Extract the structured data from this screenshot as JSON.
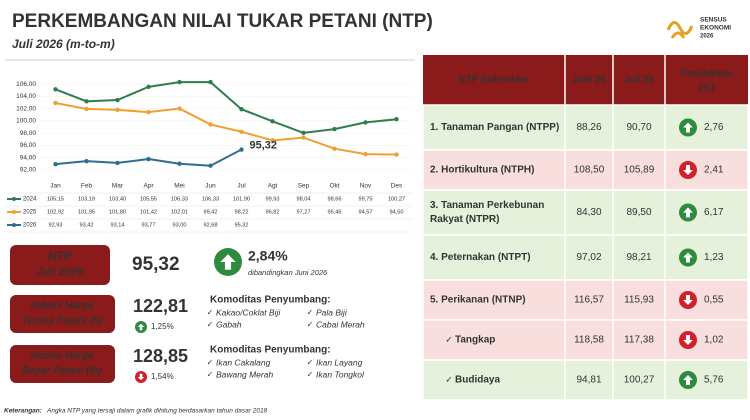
{
  "header": {
    "title": "PERKEMBANGAN NILAI TUKAR PETANI (NTP)",
    "subtitle": "Juli 2026 (m-to-m)"
  },
  "logo": {
    "lines": [
      "SENSUS",
      "EKONOMI",
      "2026"
    ]
  },
  "chart_data": {
    "type": "line",
    "categories": [
      "Jan",
      "Feb",
      "Mar",
      "Apr",
      "Mei",
      "Jun",
      "Jul",
      "Agt",
      "Sep",
      "Okt",
      "Nov",
      "Des"
    ],
    "series": [
      {
        "name": "2024",
        "color": "#2e7d4f",
        "values": [
          105.15,
          103.19,
          103.4,
          105.55,
          106.33,
          106.33,
          101.9,
          99.93,
          98.04,
          98.66,
          99.75,
          100.27
        ],
        "value_labels": [
          "105,15",
          "103,19",
          "103,40",
          "105,55",
          "106,33",
          "106,33",
          "101,90",
          "99,93",
          "98,04",
          "98,66",
          "99,75",
          "100,27"
        ]
      },
      {
        "name": "2025",
        "color": "#f0a030",
        "values": [
          102.92,
          101.95,
          101.8,
          101.42,
          102.01,
          99.42,
          98.22,
          96.82,
          97.27,
          95.46,
          94.57,
          94.5
        ],
        "value_labels": [
          "102,92",
          "101,95",
          "101,80",
          "101,42",
          "102,01",
          "99,42",
          "98,22",
          "96,82",
          "97,27",
          "95,46",
          "94,57",
          "94,50"
        ]
      },
      {
        "name": "2026",
        "color": "#2f6e8e",
        "values": [
          92.93,
          93.42,
          93.14,
          93.77,
          93.0,
          92.68,
          95.32,
          null,
          null,
          null,
          null,
          null
        ],
        "value_labels": [
          "92,93",
          "93,42",
          "93,14",
          "93,77",
          "93,00",
          "92,68",
          "95,32",
          null,
          null,
          null,
          null,
          null
        ]
      }
    ],
    "annotation": "95,32",
    "ylim": [
      91,
      107
    ],
    "yticks": [
      {
        "value": 92,
        "label": "92,00"
      },
      {
        "value": 94,
        "label": "94,00"
      },
      {
        "value": 96,
        "label": "96,00"
      },
      {
        "value": 98,
        "label": "98,00"
      },
      {
        "value": 100,
        "label": "100,00"
      },
      {
        "value": 102,
        "label": "102,00"
      },
      {
        "value": 104,
        "label": "104,00"
      },
      {
        "value": 106,
        "label": "106,00"
      }
    ]
  },
  "summary": {
    "ntp": {
      "label": [
        "NTP",
        "Juli 2026"
      ],
      "value": "95,32",
      "change": "2,84%",
      "note": "dibandingkan Juni 2026",
      "direction": "up"
    },
    "it": {
      "label": [
        "Indeks Harga",
        "Terima Petani (It)"
      ],
      "value": "122,81",
      "change": "1,25%",
      "direction": "up",
      "heading": "Komoditas Penyumbang:",
      "items": [
        "Kakao/Coklat Biji",
        "Pala Biji",
        "Gabah",
        "Cabai Merah"
      ]
    },
    "ib": {
      "label": [
        "Indeks Harga",
        "Bayar Petani (Ib)"
      ],
      "value": "128,85",
      "change": "1,54%",
      "direction": "down",
      "heading": "Komoditas Penyumbang:",
      "items": [
        "Ikan Cakalang",
        "Ikan Layang",
        "Bawang Merah",
        "Ikan Tongkol"
      ]
    }
  },
  "table": {
    "columns": [
      "NTP Subsektor",
      "Juni'26",
      "Juli'26"
    ],
    "change_header": [
      "Perubahan",
      "(%)"
    ],
    "rows": [
      {
        "label": [
          "1. Tanaman Pangan (NTPP)"
        ],
        "jun": "88,26",
        "jul": "90,70",
        "change": "2,76"
      },
      {
        "label": [
          "2. Hortikultura (NTPH)"
        ],
        "jun": "108,50",
        "jul": "105,89",
        "change": "2,41"
      },
      {
        "label": [
          "3. Tanaman Perkebunan",
          "Rakyat (NTPR)"
        ],
        "jun": "84,30",
        "jul": "89,50",
        "change": "6,17"
      },
      {
        "label": [
          "4. Peternakan (NTPT)"
        ],
        "jun": "97,02",
        "jul": "98,21",
        "change": "1,23"
      },
      {
        "label": [
          "5. Perikanan (NTNP)"
        ],
        "jun": "116,57",
        "jul": "115,93",
        "change": "0,55"
      },
      {
        "label": [
          "Tangkap"
        ],
        "sub": true,
        "jun": "118,58",
        "jul": "117,38",
        "change": "1,02"
      },
      {
        "label": [
          "Budidaya"
        ],
        "sub": true,
        "jun": "94,81",
        "jul": "100,27",
        "change": "5,76"
      }
    ]
  },
  "footer": {
    "label": "Keterangan:",
    "text": "Angka NTP yang tersaji dalam grafik dihitung berdasarkan tahun dasar 2018"
  }
}
